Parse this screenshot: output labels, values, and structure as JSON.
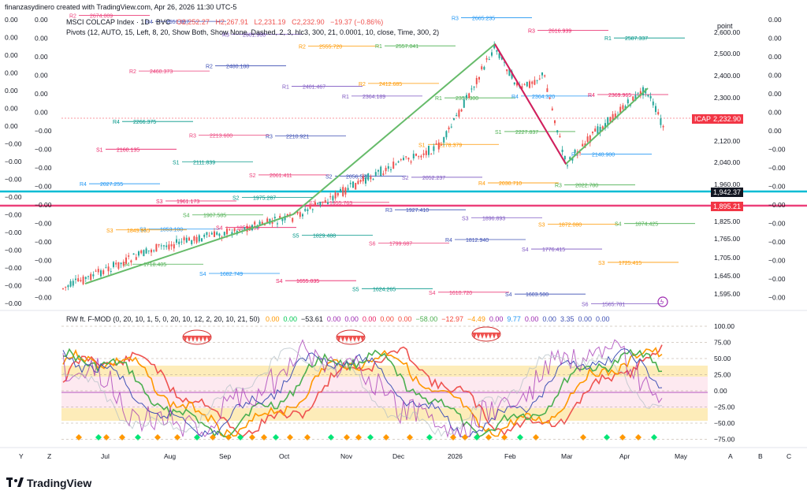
{
  "header": {
    "caption": "finanzasydinero created with TradingView.com, Apr 26, 2026 11:30 UTC-5"
  },
  "legend": {
    "symbol": "MSCI COLCAP Index · 1D · BVC",
    "o": "O2,252.27",
    "h": "H2,267.91",
    "l": "L2,231.19",
    "c": "C2,232.90",
    "chg": "−19.37 (−0.86%)",
    "pivots": "Pivots (12, AUTO, 15, Left, 8, 20, Show Both, Show None, Dashed, 2, 3, hlc3, 300, 21, 0.0001, 10, close, Time, 300, 2)",
    "osc_name": "RW ft. F-MOD (0, 20, 10, 1, 5, 0, 20, 10, 12, 2, 20, 10, 21, 50)",
    "osc_values": [
      {
        "v": "0.00",
        "c": "#ff9800"
      },
      {
        "v": "0.00",
        "c": "#00c853"
      },
      {
        "v": "−53.61",
        "c": "#131722"
      },
      {
        "v": "0.00",
        "c": "#9c27b0"
      },
      {
        "v": "0.00",
        "c": "#9c27b0"
      },
      {
        "v": "0.00",
        "c": "#e91e63"
      },
      {
        "v": "0.00",
        "c": "#f44336"
      },
      {
        "v": "0.00",
        "c": "#f44336"
      },
      {
        "v": "−58.00",
        "c": "#4caf50"
      },
      {
        "v": "−12.97",
        "c": "#f44336"
      },
      {
        "v": "−4.49",
        "c": "#ff9800"
      },
      {
        "v": "0.00",
        "c": "#9c27b0"
      },
      {
        "v": "9.77",
        "c": "#2196f3"
      },
      {
        "v": "0.00",
        "c": "#9c27b0"
      },
      {
        "v": "0.00",
        "c": "#3f51b5"
      },
      {
        "v": "3.35",
        "c": "#3f51b5"
      },
      {
        "v": "0.00",
        "c": "#3f51b5"
      },
      {
        "v": "0.00",
        "c": "#3f51b5"
      }
    ]
  },
  "price_axis": {
    "unit_label": "point",
    "ticks": [
      "2,600.00",
      "2,500.00",
      "2,400.00",
      "2,300.00",
      "2,120.00",
      "2,040.00",
      "1,960.00",
      "1,825.00",
      "1,765.00",
      "1,705.00",
      "1,645.00",
      "1,595.00"
    ],
    "last_price": "2,232.90",
    "ticker": "ICAP",
    "tag_blue": "1,942.37",
    "tag_red": "1,895.21"
  },
  "left_axes": {
    "col1": [
      "0.00",
      "0.00",
      "0.00",
      "0.00",
      "0.00",
      "0.00",
      "0.00",
      "−0.00",
      "−0.00",
      "−0.00",
      "−0.00",
      "−0.00",
      "−0.00",
      "−0.00",
      "−0.00",
      "−0.00",
      "−0.00"
    ],
    "col2": [
      "0.00",
      "0.00",
      "0.00",
      "0.00",
      "0.00",
      "0.00",
      "−0.00",
      "−0.00",
      "−0.00",
      "−0.00",
      "−0.00",
      "−0.00",
      "−0.00",
      "−0.00",
      "−0.00",
      "−0.00"
    ]
  },
  "right_axis2": [
    "0.00",
    "0.00",
    "0.00",
    "0.00",
    "0.00",
    "0.00",
    "0.00",
    "−0.00",
    "−0.00",
    "−0.00",
    "−0.00",
    "−0.00",
    "−0.00",
    "−0.00",
    "−0.00",
    "−0.00"
  ],
  "osc_axis": [
    "100.00",
    "75.00",
    "50.00",
    "25.00",
    "0.00",
    "−25.00",
    "−50.00",
    "−75.00"
  ],
  "time_axis": [
    "Y",
    "Z",
    "Jul",
    "Aug",
    "Sep",
    "Oct",
    "Nov",
    "Dec",
    "2026",
    "Feb",
    "Mar",
    "Apr",
    "May",
    "A",
    "B",
    "C"
  ],
  "pivot_labels": [
    {
      "t": "R2",
      "v": "2674.009"
    },
    {
      "t": "R4",
      "v": "2651.067"
    },
    {
      "t": "R3",
      "v": "2601.900"
    },
    {
      "t": "R2",
      "v": "2555.720"
    },
    {
      "t": "R1",
      "v": "2557.041"
    },
    {
      "t": "R3",
      "v": "2665.235"
    },
    {
      "t": "R3",
      "v": "2616.939"
    },
    {
      "t": "R1",
      "v": "2587.337"
    },
    {
      "t": "R2",
      "v": "2460.373"
    },
    {
      "t": "R2",
      "v": "2480.188"
    },
    {
      "t": "R1",
      "v": "2401.467"
    },
    {
      "t": "R2",
      "v": "2412.685"
    },
    {
      "t": "R1",
      "v": "2357.300"
    },
    {
      "t": "R4",
      "v": "2364.320"
    },
    {
      "t": "R4",
      "v": "2369.965"
    },
    {
      "t": "R4",
      "v": "2266.375"
    },
    {
      "t": "R3",
      "v": "2213.600"
    },
    {
      "t": "R3",
      "v": "2210.921"
    },
    {
      "t": "R1",
      "v": "2364.189"
    },
    {
      "t": "S1",
      "v": "2178.379"
    },
    {
      "t": "S1",
      "v": "2227.837"
    },
    {
      "t": "R4",
      "v": "2140.900"
    },
    {
      "t": "S1",
      "v": "2160.135"
    },
    {
      "t": "S1",
      "v": "2111.839"
    },
    {
      "t": "S2",
      "v": "2061.411"
    },
    {
      "t": "S2",
      "v": "2056.520"
    },
    {
      "t": "S2",
      "v": "2052.237"
    },
    {
      "t": "R4",
      "v": "2030.710"
    },
    {
      "t": "R3",
      "v": "2022.780"
    },
    {
      "t": "R4",
      "v": "2027.255"
    },
    {
      "t": "S3",
      "v": "1961.173"
    },
    {
      "t": "S2",
      "v": "1975.287"
    },
    {
      "t": "S3",
      "v": "1955.763"
    },
    {
      "t": "R3",
      "v": "1927.410"
    },
    {
      "t": "S3",
      "v": "1896.893"
    },
    {
      "t": "S3",
      "v": "1872.080"
    },
    {
      "t": "S4",
      "v": "1874.425"
    },
    {
      "t": "S3",
      "v": "1853.100"
    },
    {
      "t": "S4",
      "v": "1859.289"
    },
    {
      "t": "S5",
      "v": "1829.488"
    },
    {
      "t": "S6",
      "v": "1799.687"
    },
    {
      "t": "R4",
      "v": "1812.940"
    },
    {
      "t": "S4",
      "v": "1776.415"
    },
    {
      "t": "S3",
      "v": "1725.415"
    },
    {
      "t": "S4",
      "v": "1718.405"
    },
    {
      "t": "S4",
      "v": "1682.749"
    },
    {
      "t": "S4",
      "v": "1655.035"
    },
    {
      "t": "S5",
      "v": "1624.265"
    },
    {
      "t": "S4",
      "v": "1610.720"
    },
    {
      "t": "S4",
      "v": "1603.500"
    },
    {
      "t": "S6",
      "v": "1565.781"
    },
    {
      "t": "S3",
      "v": "1849.955"
    },
    {
      "t": "S4",
      "v": "1907.585"
    }
  ],
  "brand": {
    "name": "TradingView"
  },
  "colors": {
    "up": "#26a69a",
    "down": "#ef5350",
    "blue_line": "#00bcd4",
    "red_line": "#ec407a",
    "trend_green": "#66bb6a",
    "trend_pink": "#d81b60",
    "last": "#f23645"
  }
}
